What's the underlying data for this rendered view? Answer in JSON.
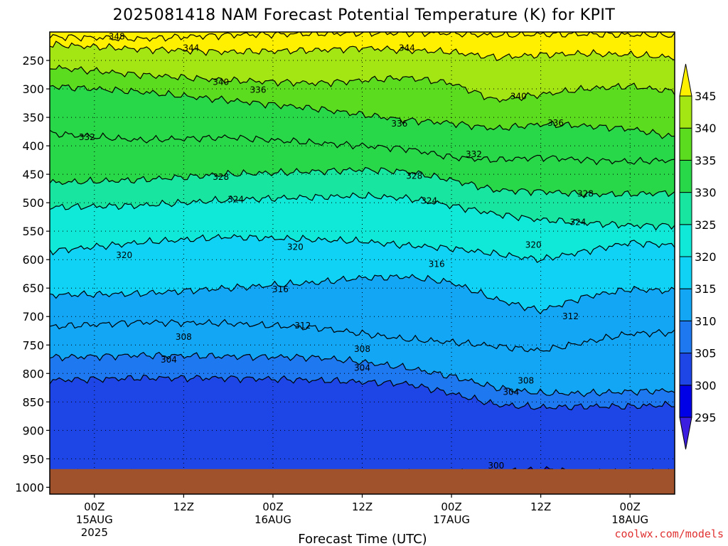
{
  "chart_data": {
    "type": "heatmap",
    "title": "2025081418 NAM Forecast Potential Temperature (K) for KPIT",
    "xlabel": "Forecast Time (UTC)",
    "ylabel": "",
    "units": "K",
    "x_ticks": [
      {
        "label": "00Z",
        "sub": [
          "15AUG",
          "2025"
        ],
        "hour": 6
      },
      {
        "label": "12Z",
        "sub": [],
        "hour": 18
      },
      {
        "label": "00Z",
        "sub": [
          "16AUG"
        ],
        "hour": 30
      },
      {
        "label": "12Z",
        "sub": [],
        "hour": 42
      },
      {
        "label": "00Z",
        "sub": [
          "17AUG"
        ],
        "hour": 54
      },
      {
        "label": "12Z",
        "sub": [],
        "hour": 66
      },
      {
        "label": "00Z",
        "sub": [
          "18AUG"
        ],
        "hour": 78
      }
    ],
    "x_range_hours": [
      0,
      84
    ],
    "y_ticks": [
      250,
      300,
      350,
      400,
      450,
      500,
      550,
      600,
      650,
      700,
      750,
      800,
      850,
      900,
      950,
      1000
    ],
    "y_range_hPa": [
      200,
      1012
    ],
    "surface_hPa": 968,
    "colorbar": {
      "ticks": [
        295,
        300,
        305,
        310,
        315,
        320,
        325,
        330,
        335,
        340,
        345
      ],
      "bins": [
        {
          "low": null,
          "high": 295,
          "color": "#3c1ee0"
        },
        {
          "low": 295,
          "high": 300,
          "color": "#0000e6"
        },
        {
          "low": 300,
          "high": 305,
          "color": "#1e46e6"
        },
        {
          "low": 305,
          "high": 310,
          "color": "#1e78f0"
        },
        {
          "low": 310,
          "high": 315,
          "color": "#12a6f5"
        },
        {
          "low": 315,
          "high": 320,
          "color": "#10d2f4"
        },
        {
          "low": 320,
          "high": 325,
          "color": "#10e8d8"
        },
        {
          "low": 325,
          "high": 330,
          "color": "#18e6a0"
        },
        {
          "low": 330,
          "high": 335,
          "color": "#28d848"
        },
        {
          "low": 335,
          "high": 340,
          "color": "#5cdc1e"
        },
        {
          "low": 340,
          "high": 345,
          "color": "#a4e614"
        },
        {
          "low": 345,
          "high": null,
          "color": "#fff000"
        }
      ]
    },
    "isotherms": [
      {
        "theta": 300,
        "hPa_by_time": [
          [
            58,
            975
          ],
          [
            62,
            972
          ],
          [
            66,
            968
          ],
          [
            70,
            972
          ],
          [
            74,
            975
          ]
        ]
      },
      {
        "theta": 304,
        "hPa_by_time": [
          [
            0,
            812
          ],
          [
            12,
            808
          ],
          [
            24,
            808
          ],
          [
            36,
            812
          ],
          [
            42,
            815
          ],
          [
            48,
            818
          ],
          [
            54,
            835
          ],
          [
            60,
            855
          ],
          [
            66,
            860
          ],
          [
            72,
            858
          ],
          [
            78,
            858
          ],
          [
            84,
            855
          ]
        ]
      },
      {
        "theta": 308,
        "hPa_by_time": [
          [
            0,
            772
          ],
          [
            12,
            768
          ],
          [
            24,
            770
          ],
          [
            36,
            772
          ],
          [
            42,
            780
          ],
          [
            48,
            790
          ],
          [
            54,
            805
          ],
          [
            60,
            825
          ],
          [
            66,
            835
          ],
          [
            72,
            835
          ],
          [
            78,
            832
          ],
          [
            84,
            830
          ]
        ]
      },
      {
        "theta": 312,
        "hPa_by_time": [
          [
            0,
            718
          ],
          [
            12,
            710
          ],
          [
            24,
            712
          ],
          [
            36,
            720
          ],
          [
            42,
            730
          ],
          [
            48,
            740
          ],
          [
            54,
            745
          ],
          [
            60,
            752
          ],
          [
            66,
            760
          ],
          [
            72,
            745
          ],
          [
            78,
            730
          ],
          [
            84,
            728
          ]
        ]
      },
      {
        "theta": 316,
        "hPa_by_time": [
          [
            0,
            662
          ],
          [
            12,
            660
          ],
          [
            24,
            650
          ],
          [
            36,
            640
          ],
          [
            42,
            632
          ],
          [
            48,
            630
          ],
          [
            54,
            640
          ],
          [
            60,
            670
          ],
          [
            66,
            690
          ],
          [
            72,
            665
          ],
          [
            78,
            652
          ],
          [
            84,
            655
          ]
        ]
      },
      {
        "theta": 320,
        "hPa_by_time": [
          [
            0,
            585
          ],
          [
            12,
            570
          ],
          [
            24,
            560
          ],
          [
            36,
            565
          ],
          [
            42,
            568
          ],
          [
            48,
            575
          ],
          [
            54,
            580
          ],
          [
            60,
            590
          ],
          [
            66,
            600
          ],
          [
            72,
            585
          ],
          [
            78,
            570
          ],
          [
            84,
            575
          ]
        ]
      },
      {
        "theta": 324,
        "hPa_by_time": [
          [
            0,
            508
          ],
          [
            12,
            505
          ],
          [
            24,
            495
          ],
          [
            36,
            490
          ],
          [
            42,
            488
          ],
          [
            48,
            492
          ],
          [
            54,
            505
          ],
          [
            60,
            520
          ],
          [
            66,
            530
          ],
          [
            72,
            535
          ],
          [
            78,
            540
          ],
          [
            84,
            540
          ]
        ]
      },
      {
        "theta": 328,
        "hPa_by_time": [
          [
            0,
            465
          ],
          [
            12,
            460
          ],
          [
            24,
            450
          ],
          [
            36,
            445
          ],
          [
            42,
            442
          ],
          [
            48,
            445
          ],
          [
            54,
            460
          ],
          [
            60,
            478
          ],
          [
            66,
            480
          ],
          [
            72,
            485
          ],
          [
            78,
            485
          ],
          [
            84,
            482
          ]
        ]
      },
      {
        "theta": 332,
        "hPa_by_time": [
          [
            0,
            378
          ],
          [
            12,
            390
          ],
          [
            24,
            385
          ],
          [
            36,
            395
          ],
          [
            42,
            400
          ],
          [
            48,
            405
          ],
          [
            54,
            420
          ],
          [
            60,
            425
          ],
          [
            66,
            420
          ],
          [
            72,
            425
          ],
          [
            78,
            428
          ],
          [
            84,
            425
          ]
        ]
      },
      {
        "theta": 336,
        "hPa_by_time": [
          [
            0,
            295
          ],
          [
            12,
            305
          ],
          [
            24,
            320
          ],
          [
            36,
            335
          ],
          [
            42,
            345
          ],
          [
            48,
            355
          ],
          [
            54,
            360
          ],
          [
            60,
            370
          ],
          [
            66,
            362
          ],
          [
            72,
            365
          ],
          [
            78,
            370
          ],
          [
            84,
            385
          ]
        ]
      },
      {
        "theta": 340,
        "hPa_by_time": [
          [
            0,
            262
          ],
          [
            12,
            275
          ],
          [
            24,
            285
          ],
          [
            36,
            290
          ],
          [
            42,
            285
          ],
          [
            48,
            280
          ],
          [
            54,
            290
          ],
          [
            60,
            320
          ],
          [
            66,
            310
          ],
          [
            72,
            300
          ],
          [
            78,
            295
          ],
          [
            84,
            305
          ]
        ]
      },
      {
        "theta": 344,
        "hPa_by_time": [
          [
            0,
            222
          ],
          [
            12,
            230
          ],
          [
            24,
            235
          ],
          [
            36,
            232
          ],
          [
            42,
            228
          ],
          [
            48,
            232
          ],
          [
            54,
            235
          ],
          [
            60,
            245
          ],
          [
            66,
            240
          ],
          [
            72,
            238
          ],
          [
            78,
            240
          ],
          [
            84,
            245
          ]
        ]
      },
      {
        "theta": 348,
        "hPa_by_time": [
          [
            0,
            208
          ],
          [
            12,
            212
          ],
          [
            24,
            205
          ],
          [
            36,
            203
          ],
          [
            42,
            202
          ],
          [
            48,
            202
          ],
          [
            54,
            202
          ],
          [
            60,
            206
          ],
          [
            66,
            204
          ],
          [
            72,
            204
          ],
          [
            78,
            205
          ],
          [
            84,
            206
          ]
        ]
      }
    ],
    "contour_labels": [
      {
        "text": "348",
        "hour": 9,
        "hPa": 208
      },
      {
        "text": "344",
        "hour": 19,
        "hPa": 228
      },
      {
        "text": "344",
        "hour": 48,
        "hPa": 228
      },
      {
        "text": "340",
        "hour": 23,
        "hPa": 288
      },
      {
        "text": "340",
        "hour": 63,
        "hPa": 313
      },
      {
        "text": "336",
        "hour": 28,
        "hPa": 302
      },
      {
        "text": "336",
        "hour": 47,
        "hPa": 361
      },
      {
        "text": "336",
        "hour": 68,
        "hPa": 360
      },
      {
        "text": "332",
        "hour": 5,
        "hPa": 385
      },
      {
        "text": "332",
        "hour": 57,
        "hPa": 415
      },
      {
        "text": "328",
        "hour": 23,
        "hPa": 455
      },
      {
        "text": "328",
        "hour": 49,
        "hPa": 453
      },
      {
        "text": "328",
        "hour": 72,
        "hPa": 484
      },
      {
        "text": "324",
        "hour": 25,
        "hPa": 494
      },
      {
        "text": "324",
        "hour": 51,
        "hPa": 497
      },
      {
        "text": "324",
        "hour": 71,
        "hPa": 534
      },
      {
        "text": "320",
        "hour": 10,
        "hPa": 592
      },
      {
        "text": "320",
        "hour": 33,
        "hPa": 578
      },
      {
        "text": "320",
        "hour": 65,
        "hPa": 574
      },
      {
        "text": "316",
        "hour": 31,
        "hPa": 652
      },
      {
        "text": "316",
        "hour": 52,
        "hPa": 608
      },
      {
        "text": "312",
        "hour": 34,
        "hPa": 716
      },
      {
        "text": "312",
        "hour": 70,
        "hPa": 700
      },
      {
        "text": "308",
        "hour": 18,
        "hPa": 736
      },
      {
        "text": "308",
        "hour": 42,
        "hPa": 757
      },
      {
        "text": "308",
        "hour": 64,
        "hPa": 813
      },
      {
        "text": "304",
        "hour": 16,
        "hPa": 776
      },
      {
        "text": "304",
        "hour": 42,
        "hPa": 790
      },
      {
        "text": "304",
        "hour": 62,
        "hPa": 833
      },
      {
        "text": "300",
        "hour": 60,
        "hPa": 962
      }
    ],
    "grid": true
  },
  "credit": "coolwx.com/models",
  "colors": {
    "ground": "#a0522d",
    "contour": "#000000",
    "grid": "#000000"
  }
}
